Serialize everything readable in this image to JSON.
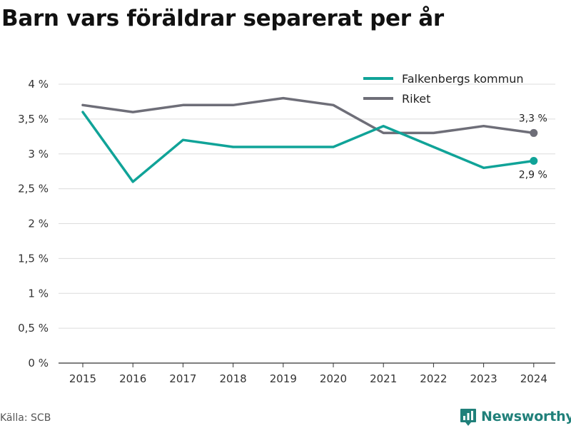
{
  "title": "Barn vars föräldrar separerat per år",
  "source": "Källa: SCB",
  "brand": {
    "name": "Newsworthy",
    "icon": "newsworthy-logo-icon",
    "color": "#20807a"
  },
  "chart_data": {
    "type": "line",
    "title": "Barn vars föräldrar separerat per år",
    "xlabel": "",
    "ylabel": "",
    "x": [
      "2015",
      "2016",
      "2017",
      "2018",
      "2019",
      "2020",
      "2021",
      "2022",
      "2023",
      "2024"
    ],
    "ylim": [
      0,
      4
    ],
    "yticks": [
      {
        "value": 0,
        "label": "0 %"
      },
      {
        "value": 0.5,
        "label": "0,5 %"
      },
      {
        "value": 1,
        "label": "1 %"
      },
      {
        "value": 1.5,
        "label": "1,5 %"
      },
      {
        "value": 2,
        "label": "2 %"
      },
      {
        "value": 2.5,
        "label": "2,5 %"
      },
      {
        "value": 3,
        "label": "3 %"
      },
      {
        "value": 3.5,
        "label": "3,5 %"
      },
      {
        "value": 4,
        "label": "4 %"
      }
    ],
    "grid": "horizontal",
    "legend_position": "top-right",
    "series": [
      {
        "name": "Falkenbergs kommun",
        "color": "#10a398",
        "values": [
          3.6,
          2.6,
          3.2,
          3.1,
          3.1,
          3.1,
          3.4,
          3.1,
          2.8,
          2.9
        ],
        "end_label": "2,9 %"
      },
      {
        "name": "Riket",
        "color": "#6e6e78",
        "values": [
          3.7,
          3.6,
          3.7,
          3.7,
          3.8,
          3.7,
          3.3,
          3.3,
          3.4,
          3.3
        ],
        "end_label": "3,3 %"
      }
    ]
  }
}
